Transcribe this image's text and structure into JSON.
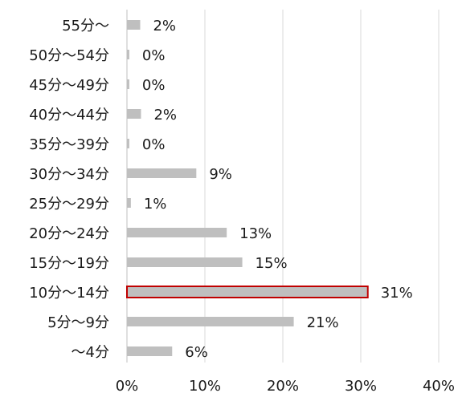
{
  "chart_data": {
    "type": "bar",
    "orientation": "horizontal",
    "categories": [
      "55分～",
      "50分～54分",
      "45分～49分",
      "40分～44分",
      "35分～39分",
      "30分～34分",
      "25分～29分",
      "20分～24分",
      "15分～19分",
      "10分～14分",
      "5分～9分",
      "～4分"
    ],
    "values": [
      1.7,
      0.3,
      0.3,
      1.8,
      0.3,
      8.9,
      0.5,
      12.8,
      14.8,
      30.9,
      21.4,
      5.8
    ],
    "data_labels": [
      "2%",
      "0%",
      "0%",
      "2%",
      "0%",
      "9%",
      "1%",
      "13%",
      "15%",
      "31%",
      "21%",
      "6%"
    ],
    "xlim": [
      0,
      40
    ],
    "xticks": [
      0,
      10,
      20,
      30,
      40
    ],
    "xtick_labels": [
      "0%",
      "10%",
      "20%",
      "30%",
      "40%"
    ],
    "highlight_category": "10分～14分",
    "grid": "vertical",
    "colors": {
      "bar": "#bfbfbf",
      "highlight_outline": "#c00000",
      "grid": "#d9d9d9",
      "axis": "#bfbfbf",
      "text": "#1a1a1a"
    }
  }
}
